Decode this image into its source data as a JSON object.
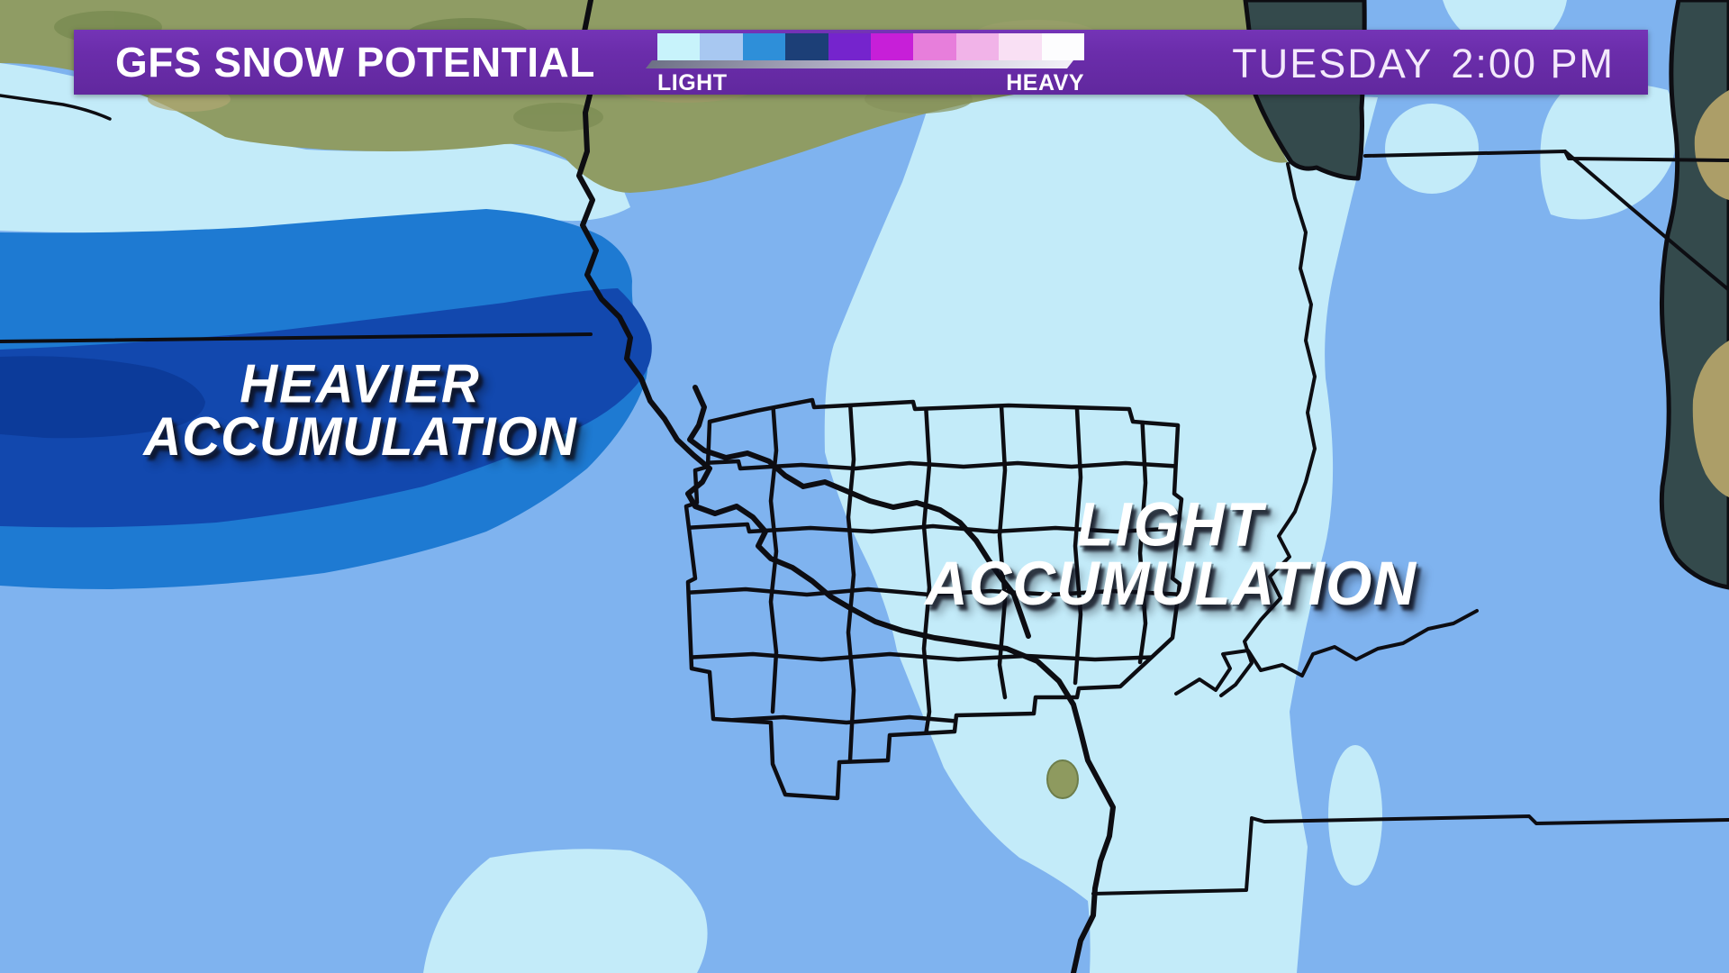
{
  "header": {
    "title": "GFS SNOW POTENTIAL",
    "legend": {
      "min_label": "LIGHT",
      "max_label": "HEAVY",
      "colors": [
        "#c8f3fb",
        "#a8c8f1",
        "#2e8fd9",
        "#1c3f77",
        "#7524cd",
        "#c71fd8",
        "#e77edb",
        "#f1b3e8",
        "#f9e0f4",
        "#fdfdfe"
      ]
    },
    "timestamp": {
      "day": "TUESDAY",
      "time": "2:00 PM"
    }
  },
  "map": {
    "model": "GFS",
    "labels": [
      {
        "line1": "HEAVIER",
        "line2": "ACCUMULATION"
      },
      {
        "line1": "LIGHT",
        "line2": "ACCUMULATION"
      }
    ],
    "colors": {
      "snow_lightest": "#c3ebf9",
      "snow_light": "#7fb3ef",
      "snow_medium": "#1e7ad2",
      "snow_heavy": "#1248ae",
      "snow_heaviest": "#0c3b9a",
      "terrain": "#8f9c64",
      "water": "#344a4c",
      "shoreline": "#ac9e68",
      "border_lines": "#0d0d12",
      "header_purple": "#6b2dab"
    }
  }
}
